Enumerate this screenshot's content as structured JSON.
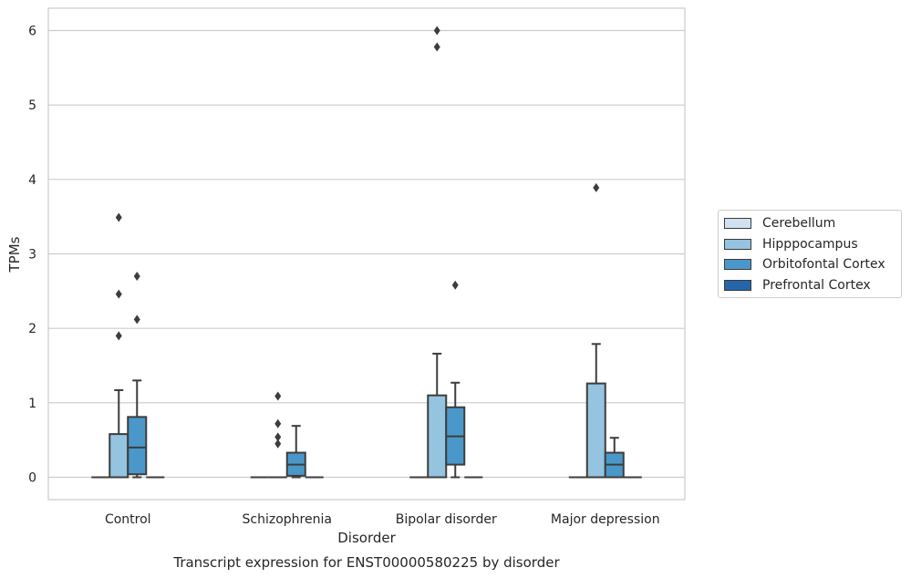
{
  "chart_data": {
    "type": "box",
    "title": "Transcript expression for ENST00000580225 by disorder",
    "xlabel": "Disorder",
    "ylabel": "TPMs",
    "ylim": [
      -0.3,
      6.3
    ],
    "yticks": [
      0,
      1,
      2,
      3,
      4,
      5,
      6
    ],
    "categories": [
      "Control",
      "Schizophrenia",
      "Bipolar disorder",
      "Major depression"
    ],
    "grid": "horizontal",
    "legend_position": "right",
    "series": [
      {
        "name": "Cerebellum",
        "color": "#d0e1f2",
        "boxes": [
          {
            "q1": 0,
            "median": 0,
            "q3": 0,
            "whisker_low": 0,
            "whisker_high": 0,
            "outliers": []
          },
          {
            "q1": 0,
            "median": 0,
            "q3": 0,
            "whisker_low": 0,
            "whisker_high": 0,
            "outliers": []
          },
          {
            "q1": 0,
            "median": 0,
            "q3": 0,
            "whisker_low": 0,
            "whisker_high": 0,
            "outliers": []
          },
          {
            "q1": 0,
            "median": 0,
            "q3": 0,
            "whisker_low": 0,
            "whisker_high": 0,
            "outliers": []
          }
        ]
      },
      {
        "name": "Hipppocampus",
        "color": "#94c4df",
        "boxes": [
          {
            "q1": 0,
            "median": 0,
            "q3": 0.58,
            "whisker_low": 0,
            "whisker_high": 1.17,
            "outliers": [
              1.9,
              2.46,
              3.49
            ]
          },
          {
            "q1": 0,
            "median": 0,
            "q3": 0,
            "whisker_low": 0,
            "whisker_high": 0,
            "outliers": [
              0.54,
              0.45,
              0.72,
              1.09
            ]
          },
          {
            "q1": 0,
            "median": 0,
            "q3": 1.1,
            "whisker_low": 0,
            "whisker_high": 1.66,
            "outliers": [
              5.78,
              6.0
            ]
          },
          {
            "q1": 0,
            "median": 0,
            "q3": 1.26,
            "whisker_low": 0,
            "whisker_high": 1.79,
            "outliers": [
              3.89
            ]
          }
        ]
      },
      {
        "name": "Orbitofontal Cortex",
        "color": "#4a98c9",
        "boxes": [
          {
            "q1": 0.04,
            "median": 0.4,
            "q3": 0.81,
            "whisker_low": 0,
            "whisker_high": 1.3,
            "outliers": [
              2.12,
              2.7
            ]
          },
          {
            "q1": 0.02,
            "median": 0.17,
            "q3": 0.33,
            "whisker_low": 0,
            "whisker_high": 0.69,
            "outliers": []
          },
          {
            "q1": 0.17,
            "median": 0.55,
            "q3": 0.94,
            "whisker_low": 0,
            "whisker_high": 1.27,
            "outliers": [
              2.58
            ]
          },
          {
            "q1": 0,
            "median": 0.17,
            "q3": 0.33,
            "whisker_low": 0,
            "whisker_high": 0.53,
            "outliers": []
          }
        ]
      },
      {
        "name": "Prefrontal Cortex",
        "color": "#2566a8",
        "boxes": [
          {
            "q1": 0,
            "median": 0,
            "q3": 0,
            "whisker_low": 0,
            "whisker_high": 0,
            "outliers": []
          },
          {
            "q1": 0,
            "median": 0,
            "q3": 0,
            "whisker_low": 0,
            "whisker_high": 0,
            "outliers": []
          },
          {
            "q1": 0,
            "median": 0,
            "q3": 0,
            "whisker_low": 0,
            "whisker_high": 0,
            "outliers": []
          },
          {
            "q1": 0,
            "median": 0,
            "q3": 0,
            "whisker_low": 0,
            "whisker_high": 0,
            "outliers": []
          }
        ]
      }
    ]
  }
}
